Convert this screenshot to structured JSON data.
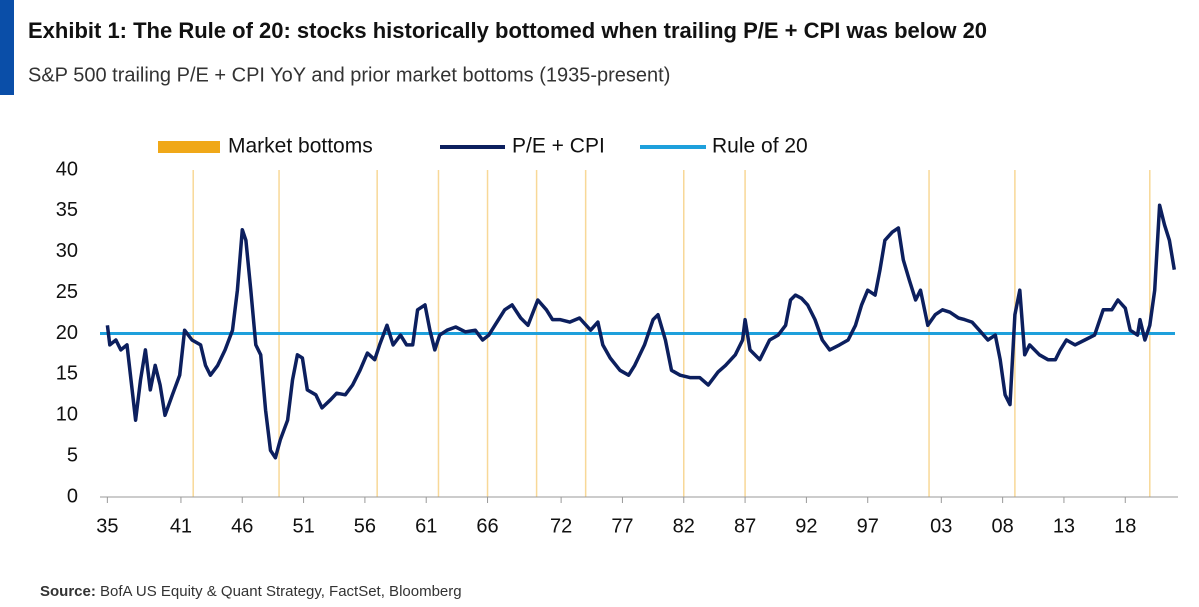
{
  "chart_data": {
    "type": "line",
    "title": "Exhibit 1: The Rule of 20: stocks historically bottomed when trailing P/E + CPI was below 20",
    "subtitle": "S&P 500 trailing P/E + CPI YoY and prior market bottoms (1935-present)",
    "source_label": "Source:",
    "source": "BofA US Equity & Quant Strategy, FactSet, Bloomberg",
    "x": [
      1935.0,
      1935.2,
      1935.7,
      1936.1,
      1936.6,
      1937.3,
      1937.7,
      1938.1,
      1938.5,
      1938.9,
      1939.3,
      1939.7,
      1940.3,
      1940.9,
      1941.3,
      1941.9,
      1942.6,
      1943.0,
      1943.4,
      1944.0,
      1944.6,
      1945.2,
      1945.6,
      1946.0,
      1946.3,
      1946.7,
      1947.1,
      1947.5,
      1947.9,
      1948.3,
      1948.7,
      1949.1,
      1949.7,
      1950.1,
      1950.5,
      1950.9,
      1951.3,
      1952.0,
      1952.5,
      1953.2,
      1953.7,
      1954.4,
      1955.0,
      1955.6,
      1956.2,
      1956.8,
      1957.2,
      1957.8,
      1958.3,
      1958.9,
      1959.4,
      1959.9,
      1960.3,
      1960.9,
      1961.3,
      1961.7,
      1962.1,
      1962.7,
      1963.4,
      1964.2,
      1965.0,
      1965.6,
      1966.1,
      1966.6,
      1967.4,
      1968.0,
      1968.7,
      1969.3,
      1970.1,
      1970.8,
      1971.3,
      1971.9,
      1972.7,
      1973.5,
      1974.4,
      1975.0,
      1975.4,
      1976.0,
      1976.8,
      1977.5,
      1978.0,
      1978.8,
      1979.5,
      1979.9,
      1980.5,
      1981.0,
      1981.7,
      1982.5,
      1983.3,
      1984.0,
      1984.8,
      1985.4,
      1986.2,
      1986.8,
      1987.0,
      1987.4,
      1988.2,
      1989.0,
      1989.7,
      1990.3,
      1990.7,
      1991.1,
      1991.6,
      1992.1,
      1992.7,
      1993.3,
      1993.9,
      1994.7,
      1995.4,
      1996.0,
      1996.5,
      1997.0,
      1997.6,
      1998.0,
      1998.4,
      1999.0,
      1999.5,
      1999.9,
      2000.4,
      2000.9,
      2001.3,
      2001.9,
      2002.5,
      2003.1,
      2003.7,
      2004.4,
      2004.9,
      2005.5,
      2006.1,
      2006.8,
      2007.4,
      2007.8,
      2008.2,
      2008.6,
      2009.0,
      2009.4,
      2009.8,
      2010.2,
      2011.0,
      2011.7,
      2012.3,
      2012.7,
      2013.2,
      2013.9,
      2014.7,
      2015.5,
      2016.2,
      2016.9,
      2017.4,
      2018.0,
      2018.4,
      2019.0,
      2019.2,
      2019.6,
      2020.0,
      2020.4,
      2020.8,
      2021.2,
      2021.6,
      2022.0
    ],
    "series": [
      {
        "name": "P/E + CPI",
        "color": "#0c1f5e",
        "values": [
          21.0,
          18.6,
          19.2,
          18.0,
          18.6,
          9.4,
          14.3,
          18.0,
          13.1,
          16.1,
          13.7,
          10.0,
          12.5,
          14.9,
          20.4,
          19.2,
          18.6,
          16.1,
          14.9,
          16.1,
          18.0,
          20.4,
          25.3,
          32.7,
          31.4,
          25.3,
          18.6,
          17.4,
          10.6,
          5.7,
          4.8,
          7.0,
          9.4,
          14.3,
          17.4,
          17.0,
          13.1,
          12.5,
          10.9,
          11.9,
          12.7,
          12.5,
          13.7,
          15.5,
          17.6,
          16.8,
          18.6,
          21.0,
          18.6,
          19.8,
          18.6,
          18.6,
          22.9,
          23.5,
          20.4,
          18.0,
          19.8,
          20.4,
          20.8,
          20.2,
          20.4,
          19.2,
          19.8,
          21.0,
          22.9,
          23.5,
          21.9,
          21.0,
          24.1,
          22.9,
          21.7,
          21.7,
          21.4,
          21.9,
          20.4,
          21.4,
          18.6,
          17.0,
          15.5,
          14.9,
          16.1,
          18.6,
          21.7,
          22.3,
          19.2,
          15.5,
          14.9,
          14.6,
          14.6,
          13.7,
          15.3,
          16.1,
          17.4,
          19.2,
          21.7,
          18.0,
          16.8,
          19.2,
          19.8,
          21.0,
          24.1,
          24.7,
          24.3,
          23.5,
          21.7,
          19.2,
          18.0,
          18.6,
          19.2,
          21.0,
          23.5,
          25.3,
          24.7,
          27.8,
          31.4,
          32.4,
          32.9,
          29.0,
          26.5,
          24.1,
          25.3,
          21.0,
          22.3,
          22.9,
          22.6,
          21.9,
          21.7,
          21.4,
          20.4,
          19.2,
          19.8,
          16.8,
          12.5,
          11.3,
          22.3,
          25.3,
          17.4,
          18.6,
          17.4,
          16.8,
          16.8,
          18.0,
          19.2,
          18.6,
          19.2,
          19.8,
          22.9,
          22.9,
          24.1,
          23.1,
          20.4,
          19.8,
          21.7,
          19.2,
          21.0,
          25.3,
          35.7,
          33.3,
          31.4,
          27.8
        ]
      }
    ],
    "reference": {
      "name": "Rule of 20",
      "value": 20,
      "color": "#1ea0dc"
    },
    "market_bottoms": {
      "name": "Market bottoms",
      "color": "#f0a818",
      "x": [
        1942,
        1949,
        1957,
        1962,
        1966,
        1970,
        1974,
        1982,
        1987,
        2002,
        2009,
        2020
      ]
    },
    "xlim": [
      1934.4,
      2022.3
    ],
    "xticks": [
      {
        "value": 1935,
        "label": "35"
      },
      {
        "value": 1941,
        "label": "41"
      },
      {
        "value": 1946,
        "label": "46"
      },
      {
        "value": 1951,
        "label": "51"
      },
      {
        "value": 1956,
        "label": "56"
      },
      {
        "value": 1961,
        "label": "61"
      },
      {
        "value": 1966,
        "label": "66"
      },
      {
        "value": 1972,
        "label": "72"
      },
      {
        "value": 1977,
        "label": "77"
      },
      {
        "value": 1982,
        "label": "82"
      },
      {
        "value": 1987,
        "label": "87"
      },
      {
        "value": 1992,
        "label": "92"
      },
      {
        "value": 1997,
        "label": "97"
      },
      {
        "value": 2003,
        "label": "03"
      },
      {
        "value": 2008,
        "label": "08"
      },
      {
        "value": 2013,
        "label": "13"
      },
      {
        "value": 2018,
        "label": "18"
      }
    ],
    "ylim": [
      0,
      40
    ],
    "yticks": [
      0,
      5,
      10,
      15,
      20,
      25,
      30,
      35,
      40
    ]
  }
}
